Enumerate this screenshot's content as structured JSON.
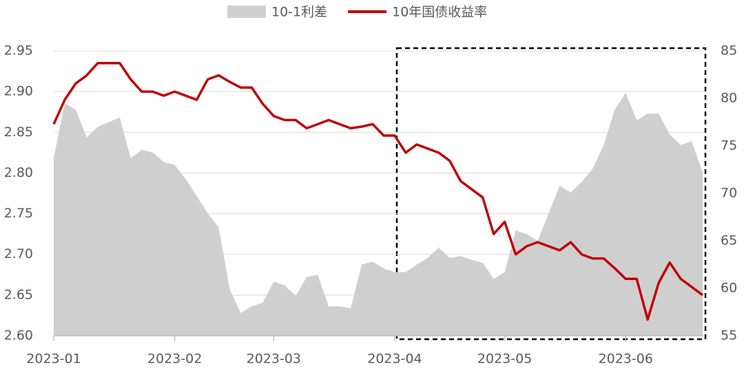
{
  "chart_data": {
    "type": "line",
    "categories": [
      "2023-01",
      null,
      null,
      null,
      null,
      null,
      null,
      null,
      null,
      null,
      null,
      "2023-02",
      null,
      null,
      null,
      null,
      null,
      null,
      null,
      null,
      "2023-03",
      null,
      null,
      null,
      null,
      null,
      null,
      null,
      null,
      null,
      null,
      "2023-04",
      null,
      null,
      null,
      null,
      null,
      null,
      null,
      null,
      null,
      "2023-05",
      null,
      null,
      null,
      null,
      null,
      null,
      null,
      null,
      null,
      null,
      "2023-06",
      null,
      null,
      null,
      null,
      null,
      null,
      null
    ],
    "series": [
      {
        "name": "10-1利差",
        "type": "area",
        "color": "#d0cfcf",
        "axis": "y2",
        "values": [
          73.7,
          79.5,
          78.8,
          75.9,
          77,
          77.5,
          78,
          73.7,
          74.6,
          74.3,
          73.3,
          73,
          71.5,
          69.7,
          67.9,
          66.4,
          59.9,
          57.4,
          58.1,
          58.5,
          60.7,
          60.3,
          59.2,
          61.2,
          61.4,
          58.1,
          58.1,
          57.9,
          62.5,
          62.8,
          62.1,
          61.7,
          61.7,
          62.5,
          63.2,
          64.3,
          63.2,
          63.4,
          63,
          62.7,
          61,
          61.7,
          66.1,
          65.7,
          65,
          67.9,
          70.8,
          70.1,
          71.2,
          72.6,
          75.1,
          78.8,
          80.6,
          77.7,
          78.4,
          78.4,
          76.2,
          75.1,
          75.5,
          72.2
        ]
      },
      {
        "name": "10年国债收益率",
        "type": "line",
        "color": "#c00000",
        "values": [
          2.86,
          2.89,
          2.91,
          2.92,
          2.935,
          2.935,
          2.935,
          2.915,
          2.9,
          2.9,
          2.895,
          2.9,
          2.895,
          2.89,
          2.915,
          2.92,
          2.912,
          2.905,
          2.905,
          2.885,
          2.87,
          2.865,
          2.865,
          2.855,
          2.86,
          2.865,
          2.86,
          2.855,
          2.857,
          2.86,
          2.846,
          2.846,
          2.825,
          2.835,
          2.83,
          2.825,
          2.815,
          2.79,
          2.78,
          2.77,
          2.725,
          2.74,
          2.7,
          2.71,
          2.715,
          2.71,
          2.705,
          2.715,
          2.7,
          2.695,
          2.695,
          2.683,
          2.67,
          2.67,
          2.62,
          2.665,
          2.69,
          2.67,
          2.66,
          2.65
        ]
      }
    ],
    "ylim": [
      2.6,
      2.95
    ],
    "yticks": [
      {
        "value": 2.6,
        "label": "2.60"
      },
      {
        "value": 2.65,
        "label": "2.65"
      },
      {
        "value": 2.7,
        "label": "2.70"
      },
      {
        "value": 2.75,
        "label": "2.75"
      },
      {
        "value": 2.8,
        "label": "2.80"
      },
      {
        "value": 2.85,
        "label": "2.85"
      },
      {
        "value": 2.9,
        "label": "2.90"
      },
      {
        "value": 2.95,
        "label": "2.95"
      }
    ],
    "y2lim": [
      55,
      85
    ],
    "y2ticks": [
      55,
      60,
      65,
      70,
      75,
      80,
      85
    ],
    "grid": true,
    "legend": "top"
  }
}
